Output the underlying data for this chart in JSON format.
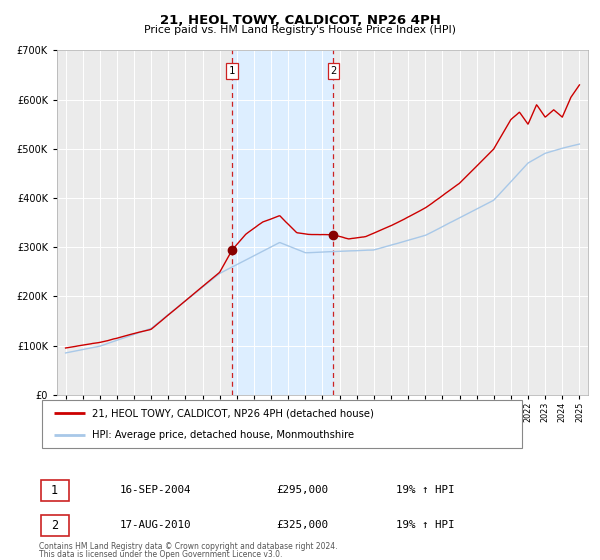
{
  "title": "21, HEOL TOWY, CALDICOT, NP26 4PH",
  "subtitle": "Price paid vs. HM Land Registry's House Price Index (HPI)",
  "legend_line1": "21, HEOL TOWY, CALDICOT, NP26 4PH (detached house)",
  "legend_line2": "HPI: Average price, detached house, Monmouthshire",
  "sale1_date": "16-SEP-2004",
  "sale1_price": 295000,
  "sale1_hpi": "19% ↑ HPI",
  "sale1_label": "1",
  "sale2_date": "17-AUG-2010",
  "sale2_price": 325000,
  "sale2_hpi": "19% ↑ HPI",
  "sale2_label": "2",
  "footer1": "Contains HM Land Registry data © Crown copyright and database right 2024.",
  "footer2": "This data is licensed under the Open Government Licence v3.0.",
  "sale1_x": 2004.71,
  "sale2_x": 2010.63,
  "shaded_start": 2004.71,
  "shaded_end": 2010.63,
  "hpi_color": "#a8c8e8",
  "price_color": "#cc0000",
  "shade_color": "#ddeeff",
  "marker_color": "#880000",
  "ylim_max": 700000,
  "ylim_min": 0,
  "xlim_min": 1994.5,
  "xlim_max": 2025.5,
  "chart_bg": "#ebebeb",
  "grid_color": "#ffffff"
}
